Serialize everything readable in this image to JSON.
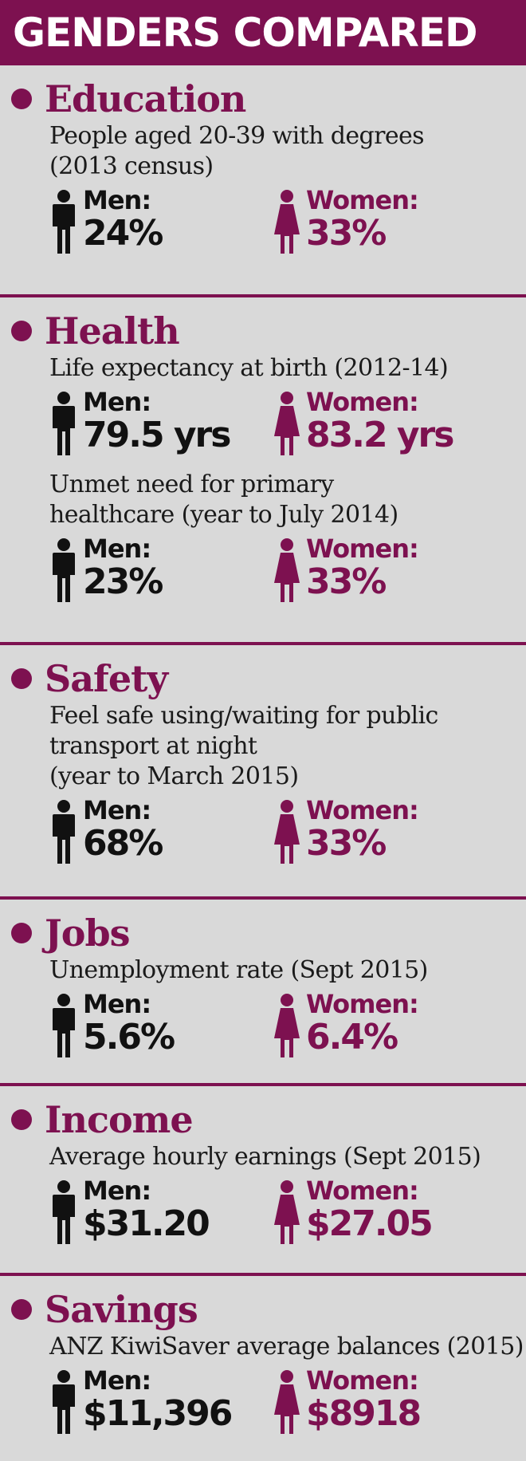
{
  "title": "GENDERS COMPARED",
  "labels": {
    "men": "Men:",
    "women": "Women:"
  },
  "colors": {
    "accent": "#7d1150",
    "background": "#d9d9d9",
    "men": "#111111"
  },
  "icons": {
    "men": "man-figure-icon",
    "women": "woman-figure-icon"
  },
  "sections": [
    {
      "heading": "Education",
      "items": [
        {
          "desc": [
            "People aged 20-39 with degrees",
            "(2013 census)"
          ],
          "men": "24%",
          "women": "33%"
        }
      ]
    },
    {
      "heading": "Health",
      "items": [
        {
          "desc": [
            "Life expectancy at birth (2012-14)"
          ],
          "men": "79.5 yrs",
          "women": "83.2 yrs"
        },
        {
          "desc": [
            "Unmet need for primary",
            "healthcare (year to July 2014)"
          ],
          "men": "23%",
          "women": "33%"
        }
      ]
    },
    {
      "heading": "Safety",
      "items": [
        {
          "desc": [
            "Feel safe using/waiting for public",
            "transport at night",
            "(year to March 2015)"
          ],
          "men": "68%",
          "women": "33%"
        }
      ]
    },
    {
      "heading": "Jobs",
      "items": [
        {
          "desc": [
            "Unemployment rate (Sept 2015)"
          ],
          "men": "5.6%",
          "women": "6.4%"
        }
      ]
    },
    {
      "heading": "Income",
      "items": [
        {
          "desc": [
            "Average hourly earnings (Sept 2015)"
          ],
          "men": "$31.20",
          "women": "$27.05"
        }
      ]
    },
    {
      "heading": "Savings",
      "items": [
        {
          "desc": [
            "ANZ KiwiSaver average balances (2015)"
          ],
          "men": "$11,396",
          "women": "$8918"
        }
      ]
    }
  ]
}
